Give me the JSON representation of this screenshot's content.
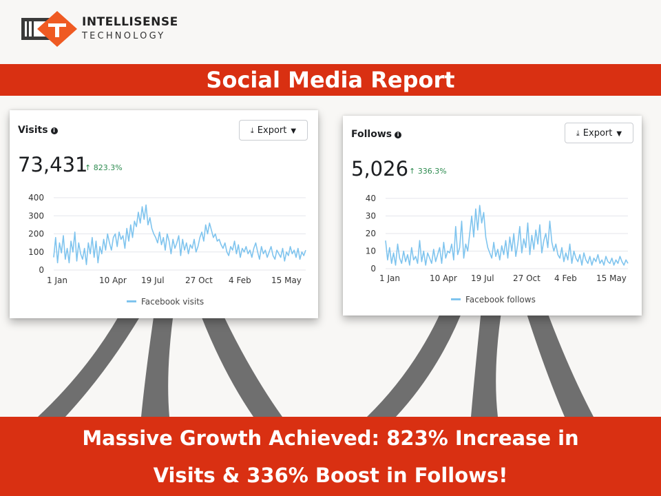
{
  "brand": {
    "line1": "INTELLISENSE",
    "line2": "TECHNOLOGY"
  },
  "banner_title": "Social Media Report",
  "footer": {
    "line1": "Massive Growth Achieved: 823% Increase in",
    "line2": "Visits & 336% Boost in Follows!"
  },
  "colors": {
    "accent": "#d93012",
    "series": "#7fc4ee",
    "positive": "#2b8a4e"
  },
  "cards": [
    {
      "title": "Visits",
      "export_label": "Export",
      "total": "73,431",
      "change": "↑ 823.3%",
      "legend": "Facebook visits"
    },
    {
      "title": "Follows",
      "export_label": "Export",
      "total": "5,026",
      "change": "↑ 336.3%",
      "legend": "Facebook follows"
    }
  ],
  "chart_data": [
    {
      "type": "line",
      "title": "Visits",
      "xlabel": "",
      "ylabel": "",
      "ylim": [
        0,
        400
      ],
      "yticks": [
        0,
        100,
        200,
        300,
        400
      ],
      "xticks": [
        "1 Jan",
        "10 Apr",
        "19 Jul",
        "27 Oct",
        "4 Feb",
        "15 May"
      ],
      "grid": true,
      "legend": "bottom",
      "series": [
        {
          "name": "Facebook visits",
          "values": [
            70,
            180,
            40,
            150,
            95,
            190,
            60,
            120,
            40,
            160,
            100,
            210,
            50,
            150,
            90,
            60,
            120,
            30,
            150,
            90,
            180,
            70,
            160,
            40,
            130,
            90,
            170,
            110,
            200,
            150,
            110,
            180,
            200,
            130,
            210,
            170,
            190,
            120,
            230,
            160,
            250,
            180,
            270,
            240,
            320,
            260,
            350,
            280,
            360,
            250,
            290,
            230,
            200,
            180,
            150,
            210,
            140,
            180,
            110,
            200,
            160,
            90,
            170,
            120,
            150,
            190,
            80,
            170,
            110,
            150,
            90,
            140,
            120,
            170,
            100,
            130,
            180,
            210,
            160,
            250,
            200,
            260,
            220,
            180,
            200,
            160,
            170,
            140,
            120,
            150,
            100,
            80,
            130,
            110,
            160,
            90,
            140,
            70,
            120,
            100,
            130,
            90,
            110,
            70,
            120,
            150,
            100,
            60,
            130,
            90,
            110,
            70,
            100,
            130,
            80,
            60,
            110,
            90,
            70,
            120,
            50,
            100,
            80,
            130,
            90,
            110,
            70,
            120,
            60,
            100,
            80,
            110
          ]
        }
      ]
    },
    {
      "type": "line",
      "title": "Follows",
      "xlabel": "",
      "ylabel": "",
      "ylim": [
        0,
        40
      ],
      "yticks": [
        0,
        10,
        20,
        30,
        40
      ],
      "xticks": [
        "1 Jan",
        "10 Apr",
        "19 Jul",
        "27 Oct",
        "4 Feb",
        "15 May"
      ],
      "grid": true,
      "legend": "bottom",
      "series": [
        {
          "name": "Facebook follows",
          "values": [
            16,
            5,
            12,
            3,
            9,
            2,
            14,
            6,
            3,
            10,
            4,
            8,
            2,
            12,
            5,
            7,
            3,
            16,
            4,
            10,
            2,
            9,
            6,
            3,
            11,
            4,
            8,
            12,
            3,
            15,
            6,
            10,
            9,
            14,
            5,
            24,
            8,
            12,
            27,
            6,
            14,
            10,
            20,
            30,
            18,
            34,
            22,
            36,
            26,
            32,
            18,
            12,
            9,
            6,
            15,
            7,
            11,
            5,
            13,
            8,
            16,
            6,
            18,
            10,
            20,
            7,
            14,
            24,
            9,
            17,
            12,
            26,
            8,
            19,
            11,
            22,
            14,
            25,
            9,
            16,
            20,
            12,
            27,
            15,
            10,
            14,
            8,
            6,
            12,
            4,
            9,
            5,
            14,
            3,
            10,
            6,
            4,
            8,
            2,
            9,
            5,
            3,
            7,
            2,
            6,
            4,
            8,
            3,
            5,
            2,
            7,
            4,
            3,
            6,
            2,
            5,
            3,
            7,
            4,
            2,
            5,
            3
          ]
        }
      ]
    }
  ]
}
